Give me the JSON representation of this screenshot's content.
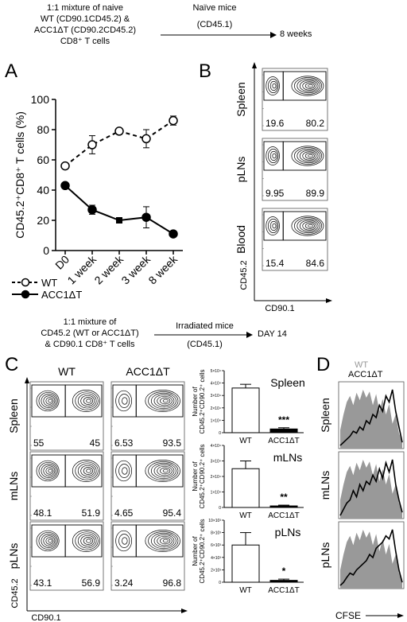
{
  "schematic1": {
    "line1": "1:1 mixture of naive",
    "line2": "WT (CD90.1CD45.2) &",
    "line3": "ACC1ΔT (CD90.2CD45.2)",
    "line4": "CD8⁺ T cells",
    "arrow_top": "Naïve mice",
    "arrow_bottom": "(CD45.1)",
    "result": "8 weeks"
  },
  "panelA": {
    "letter": "A",
    "chart_data": {
      "type": "line",
      "ylabel": "CD45.2⁺CD8⁺ T cells (%)",
      "categories": [
        "D0",
        "1 week",
        "2 week",
        "3 week",
        "8 week"
      ],
      "yticks": [
        "0",
        "20",
        "40",
        "60",
        "80",
        "100"
      ],
      "ylim": [
        0,
        100
      ],
      "series": [
        {
          "name": "WT",
          "values": [
            56,
            70,
            79,
            74,
            86
          ],
          "errors": [
            0,
            6,
            2,
            6,
            3
          ],
          "style": "dashed-open"
        },
        {
          "name": "ACC1ΔT",
          "values": [
            43,
            27,
            20,
            22,
            11
          ],
          "errors": [
            0,
            3,
            1,
            7,
            0
          ],
          "style": "solid-filled"
        }
      ]
    }
  },
  "panelB": {
    "letter": "B",
    "rows": [
      {
        "label": "Spleen",
        "left": "19.6",
        "right": "80.2"
      },
      {
        "label": "pLNs",
        "left": "9.95",
        "right": "89.9"
      },
      {
        "label": "Blood",
        "left": "15.4",
        "right": "84.6"
      }
    ],
    "yaxis": "CD45.2",
    "xaxis": "CD90.1"
  },
  "schematic2": {
    "line1": "1:1 mixture of",
    "line2": "CD45.2 (WT or ACC1ΔT)",
    "line3": "& CD90.1 CD8⁺ T cells",
    "arrow_top": "Irradiated mice",
    "arrow_bottom": "(CD45.1)",
    "result": "DAY 14"
  },
  "panelC": {
    "letter": "C",
    "col_wt": "WT",
    "col_ko": "ACC1ΔT",
    "rows": [
      {
        "label": "Spleen",
        "wt_left": "55",
        "wt_right": "45",
        "ko_left": "6.53",
        "ko_right": "93.5"
      },
      {
        "label": "mLNs",
        "wt_left": "48.1",
        "wt_right": "51.9",
        "ko_left": "4.65",
        "ko_right": "95.4"
      },
      {
        "label": "pLNs",
        "wt_left": "43.1",
        "wt_right": "56.9",
        "ko_left": "3.24",
        "ko_right": "96.8"
      }
    ],
    "yaxis": "CD45.2",
    "xaxis": "CD90.1",
    "bar_ylabel_1": "Number of",
    "bar_ylabel_2": "CD45.2⁺CD90.2⁺ cells",
    "chart_data": [
      {
        "type": "bar",
        "title": "Spleen",
        "categories": [
          "WT",
          "ACC1ΔT"
        ],
        "values": [
          3.6,
          0.3
        ],
        "errors": [
          0.3,
          0.1
        ],
        "yticks": [
          "0",
          "1×10⁴",
          "2×10⁴",
          "3×10⁴",
          "4×10⁴",
          "5×10⁴"
        ],
        "ylim": [
          0,
          5
        ],
        "sig": "***"
      },
      {
        "type": "bar",
        "title": "mLNs",
        "categories": [
          "WT",
          "ACC1ΔT"
        ],
        "values": [
          2.5,
          0.1
        ],
        "errors": [
          0.5,
          0.05
        ],
        "yticks": [
          "0",
          "1×10⁴",
          "2×10⁴",
          "3×10⁴",
          "4×10⁴"
        ],
        "ylim": [
          0,
          4
        ],
        "sig": "**"
      },
      {
        "type": "bar",
        "title": "pLNs",
        "categories": [
          "WT",
          "ACC1ΔT"
        ],
        "values": [
          6.0,
          0.3
        ],
        "errors": [
          2.0,
          0.2
        ],
        "yticks": [
          "0",
          "2×10³",
          "4×10³",
          "6×10³",
          "8×10³",
          "10×10³"
        ],
        "ylim": [
          0,
          10
        ],
        "sig": "*"
      }
    ]
  },
  "panelD": {
    "letter": "D",
    "legend_wt": "WT",
    "legend_ko": "ACC1ΔT",
    "legend_wt_color": "#999999",
    "legend_ko_color": "#000000",
    "rows": [
      "Spleen",
      "mLNs",
      "pLNs"
    ],
    "xaxis": "CFSE"
  }
}
